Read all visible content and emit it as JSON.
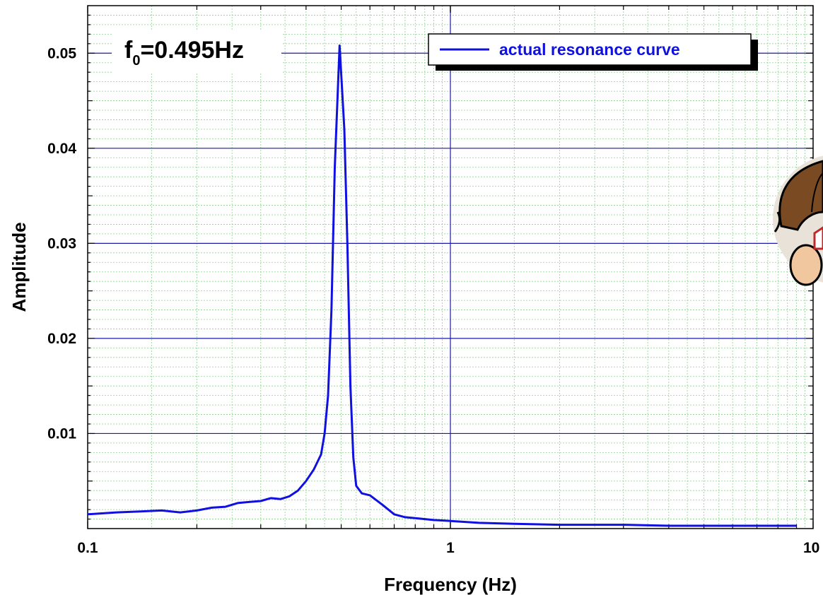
{
  "chart_data": {
    "type": "line",
    "title": "",
    "xlabel": "Frequency (Hz)",
    "ylabel": "Amplitude",
    "x_scale": "log",
    "xlim": [
      0.1,
      10
    ],
    "ylim": [
      0,
      0.055
    ],
    "x_ticks": [
      0.1,
      1,
      10
    ],
    "x_tick_labels": [
      "0.1",
      "1",
      "10"
    ],
    "y_ticks": [
      0.01,
      0.02,
      0.03,
      0.04,
      0.05
    ],
    "y_tick_labels": [
      "0.01",
      "0.02",
      "0.03",
      "0.04",
      "0.05"
    ],
    "grid": true,
    "legend": "top-right",
    "annotation": {
      "prefix": "f",
      "subscript": "0",
      "suffix": "=0.495Hz"
    },
    "colors": {
      "line": "#1010e0",
      "major_grid": "#1a1aa6",
      "minor_grid": "#8fd08f"
    },
    "series": [
      {
        "name": "actual resonance curve",
        "x": [
          0.1,
          0.12,
          0.14,
          0.16,
          0.18,
          0.2,
          0.22,
          0.24,
          0.26,
          0.28,
          0.3,
          0.32,
          0.34,
          0.36,
          0.38,
          0.4,
          0.42,
          0.44,
          0.45,
          0.46,
          0.47,
          0.48,
          0.495,
          0.51,
          0.52,
          0.53,
          0.54,
          0.55,
          0.57,
          0.6,
          0.65,
          0.7,
          0.75,
          0.8,
          0.9,
          1.0,
          1.2,
          1.5,
          2,
          3,
          4,
          5,
          6,
          7,
          8,
          9
        ],
        "y": [
          0.0015,
          0.0017,
          0.0018,
          0.0019,
          0.0017,
          0.0019,
          0.0022,
          0.0023,
          0.0027,
          0.0028,
          0.0029,
          0.0032,
          0.0031,
          0.0034,
          0.004,
          0.005,
          0.0062,
          0.0078,
          0.01,
          0.014,
          0.023,
          0.038,
          0.0508,
          0.042,
          0.03,
          0.015,
          0.0075,
          0.0045,
          0.0037,
          0.0035,
          0.0025,
          0.0015,
          0.0012,
          0.0011,
          0.0009,
          0.0008,
          0.0006,
          0.0005,
          0.0004,
          0.0004,
          0.0003,
          0.0003,
          0.0003,
          0.0003,
          0.0003,
          0.0003
        ]
      }
    ]
  }
}
